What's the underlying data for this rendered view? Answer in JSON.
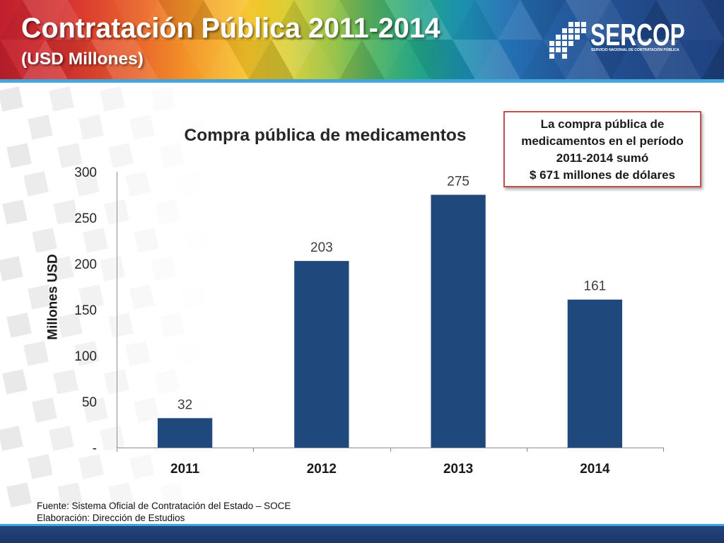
{
  "header": {
    "title": "Contratación Pública 2011-2014",
    "subtitle": "(USD Millones)"
  },
  "logo": {
    "icon": "sercop-pixel-grid-icon",
    "name": "SERCOP",
    "tagline": "SERVICIO NACIONAL DE CONTRATACIÓN PÚBLICA"
  },
  "callout": {
    "lines": [
      "La compra pública de",
      "medicamentos en el período",
      "2011-2014 sumó",
      "$ 671 millones de dólares"
    ]
  },
  "footer": {
    "source": "Fuente: Sistema Oficial de Contratación del Estado – SOCE",
    "credit": "Elaboración: Dirección de Estudios"
  },
  "colors": {
    "bar": "#1f497d",
    "callout_border": "#c0504d",
    "accent_stripe": "#43a7dd",
    "footer_band": "#1d3a6e"
  },
  "chart_data": {
    "type": "bar",
    "title": "Compra pública de medicamentos",
    "ylabel": "Millones USD",
    "categories": [
      "2011",
      "2012",
      "2013",
      "2014"
    ],
    "values": [
      32,
      203,
      275,
      161
    ],
    "ylim": [
      0,
      300
    ],
    "yticks": [
      0,
      50,
      100,
      150,
      200,
      250,
      300
    ],
    "ytick_labels": [
      "-",
      "50",
      "100",
      "150",
      "200",
      "250",
      "300"
    ],
    "data_labels": true,
    "grid": false
  }
}
